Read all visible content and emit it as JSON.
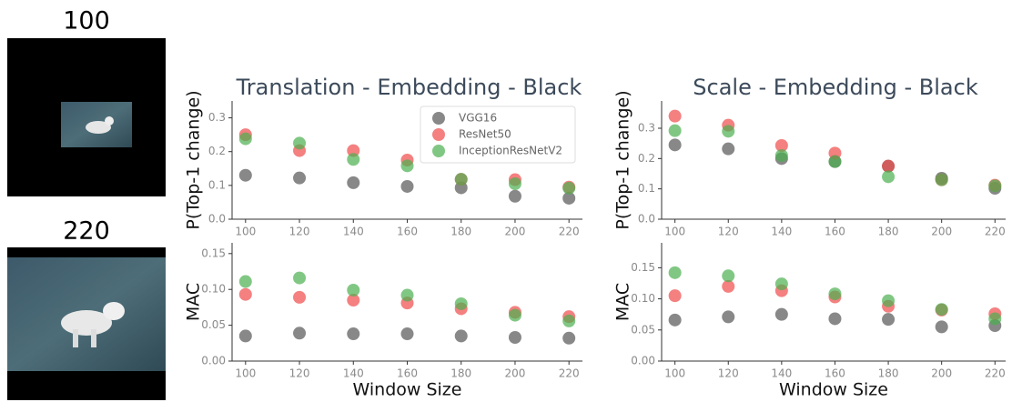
{
  "images": [
    {
      "label": "100"
    },
    {
      "label": "220"
    }
  ],
  "chart_data": [
    {
      "type": "scatter",
      "title": "Translation - Embedding - Black",
      "y_label": "P(Top-1 change)",
      "x": [
        100,
        120,
        140,
        160,
        180,
        200,
        220
      ],
      "xlim": [
        95,
        225
      ],
      "xticks": [
        100,
        120,
        140,
        160,
        180,
        200,
        220
      ],
      "ylim": [
        0,
        0.35
      ],
      "yticks": [
        {
          "value": 0,
          "label": "0.0"
        },
        0.1,
        0.2,
        0.3
      ],
      "legend": "upper right",
      "series": [
        {
          "name": "VGG16",
          "color": "#555555",
          "values": [
            0.13,
            0.122,
            0.108,
            0.097,
            0.093,
            0.068,
            0.062
          ]
        },
        {
          "name": "ResNet50",
          "color": "#f04a4a",
          "values": [
            0.25,
            0.203,
            0.203,
            0.175,
            0.118,
            0.117,
            0.095
          ]
        },
        {
          "name": "InceptionResNetV2",
          "color": "#4caf50",
          "values": [
            0.238,
            0.225,
            0.177,
            0.158,
            0.118,
            0.105,
            0.092
          ]
        }
      ]
    },
    {
      "type": "scatter",
      "y_label": "MAC",
      "x_label": "Window Size",
      "x": [
        100,
        120,
        140,
        160,
        180,
        200,
        220
      ],
      "xlim": [
        95,
        225
      ],
      "xticks": [
        100,
        120,
        140,
        160,
        180,
        200,
        220
      ],
      "ylim": [
        0,
        0.165
      ],
      "yticks": [
        {
          "value": 0,
          "label": "0.00"
        },
        {
          "value": 0.05,
          "label": "0.05"
        },
        {
          "value": 0.1,
          "label": "0.10"
        },
        {
          "value": 0.15,
          "label": "0.15"
        }
      ],
      "series": [
        {
          "color": "#555555",
          "values": [
            0.035,
            0.039,
            0.038,
            0.038,
            0.035,
            0.033,
            0.032
          ]
        },
        {
          "color": "#f04a4a",
          "values": [
            0.093,
            0.089,
            0.085,
            0.081,
            0.073,
            0.068,
            0.062
          ]
        },
        {
          "color": "#4caf50",
          "values": [
            0.111,
            0.116,
            0.099,
            0.092,
            0.08,
            0.064,
            0.056
          ]
        }
      ]
    },
    {
      "type": "scatter",
      "title": "Scale - Embedding - Black",
      "y_label": "P(Top-1 change)",
      "x": [
        100,
        120,
        140,
        160,
        180,
        200,
        220
      ],
      "xlim": [
        95,
        224
      ],
      "xticks": [
        100,
        120,
        140,
        160,
        180,
        200,
        220
      ],
      "ylim": [
        0,
        0.39
      ],
      "yticks": [
        {
          "value": 0,
          "label": "0.0"
        },
        0.1,
        0.2,
        0.3
      ],
      "series": [
        {
          "color": "#555555",
          "values": [
            0.245,
            0.232,
            0.2,
            0.19,
            0.175,
            0.135,
            0.102
          ]
        },
        {
          "color": "#f04a4a",
          "values": [
            0.34,
            0.31,
            0.243,
            0.218,
            0.175,
            0.13,
            0.112
          ]
        },
        {
          "color": "#4caf50",
          "values": [
            0.292,
            0.29,
            0.21,
            0.19,
            0.14,
            0.13,
            0.11
          ]
        }
      ]
    },
    {
      "type": "scatter",
      "y_label": "MAC",
      "x_label": "Window Size",
      "x": [
        100,
        120,
        140,
        160,
        180,
        200,
        220
      ],
      "xlim": [
        95,
        224
      ],
      "xticks": [
        100,
        120,
        140,
        160,
        180,
        200,
        220
      ],
      "ylim": [
        0,
        0.19
      ],
      "yticks": [
        {
          "value": 0,
          "label": "0.00"
        },
        {
          "value": 0.05,
          "label": "0.05"
        },
        {
          "value": 0.1,
          "label": "0.10"
        },
        {
          "value": 0.15,
          "label": "0.15"
        }
      ],
      "series": [
        {
          "color": "#555555",
          "values": [
            0.066,
            0.071,
            0.075,
            0.068,
            0.067,
            0.055,
            0.057
          ]
        },
        {
          "color": "#f04a4a",
          "values": [
            0.105,
            0.12,
            0.113,
            0.103,
            0.088,
            0.082,
            0.076
          ]
        },
        {
          "color": "#4caf50",
          "values": [
            0.142,
            0.137,
            0.124,
            0.108,
            0.097,
            0.083,
            0.068
          ]
        }
      ]
    }
  ]
}
